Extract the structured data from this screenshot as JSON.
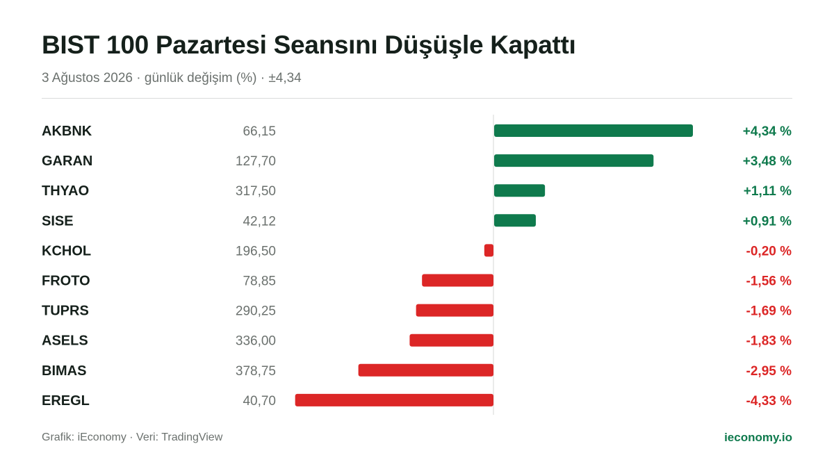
{
  "header": {
    "title": "BIST 100 Pazartesi Seansını Düşüşle Kapattı",
    "subtitle": "3 Ağustos 2026 · günlük değişim (%) · ±4,34"
  },
  "footer": {
    "source": "Grafik: iEconomy · Veri: TradingView",
    "brand": "ieconomy.io"
  },
  "colors": {
    "positive": "#0f7a4d",
    "negative": "#dc2626"
  },
  "chart_data": {
    "type": "bar",
    "orientation": "horizontal",
    "xlim": [
      -4.34,
      4.34
    ],
    "grid": false,
    "rows": [
      {
        "ticker": "AKBNK",
        "price": "66,15",
        "change": 4.34,
        "label": "+4,34 %"
      },
      {
        "ticker": "GARAN",
        "price": "127,70",
        "change": 3.48,
        "label": "+3,48 %"
      },
      {
        "ticker": "THYAO",
        "price": "317,50",
        "change": 1.11,
        "label": "+1,11 %"
      },
      {
        "ticker": "SISE",
        "price": "42,12",
        "change": 0.91,
        "label": "+0,91 %"
      },
      {
        "ticker": "KCHOL",
        "price": "196,50",
        "change": -0.2,
        "label": "-0,20 %"
      },
      {
        "ticker": "FROTO",
        "price": "78,85",
        "change": -1.56,
        "label": "-1,56 %"
      },
      {
        "ticker": "TUPRS",
        "price": "290,25",
        "change": -1.69,
        "label": "-1,69 %"
      },
      {
        "ticker": "ASELS",
        "price": "336,00",
        "change": -1.83,
        "label": "-1,83 %"
      },
      {
        "ticker": "BIMAS",
        "price": "378,75",
        "change": -2.95,
        "label": "-2,95 %"
      },
      {
        "ticker": "EREGL",
        "price": "40,70",
        "change": -4.33,
        "label": "-4,33 %"
      }
    ]
  }
}
